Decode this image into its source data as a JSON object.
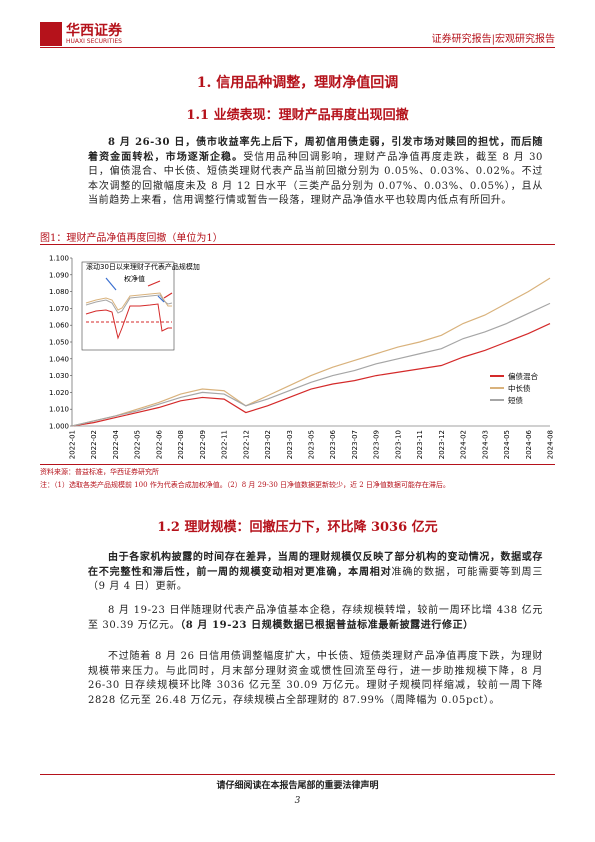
{
  "header": {
    "logo": "华西证券",
    "logo_en": "HUAXI SECURITIES",
    "report_type": "证券研究报告|宏观研究报告"
  },
  "section1": {
    "title": "1. 信用品种调整，理财净值回调",
    "subtitle": "1.1 业绩表现：理财产品再度出现回撤",
    "paragraphs": [
      [
        {
          "text": "8 月 26-30 日，债市收益率先上后下，周初信用债走弱，引发市场对赎回的担忧，而后随着资金面转松，市场逐渐企稳。",
          "bold": true
        },
        {
          "text": "受信用品种回调影响，理财产品净值再度走跌，截至 8 月 30 日，偏债混合、中长债、短债类理财代表产品当前回撤分别为 0.05%、0.03%、0.02%。不过本次调整的回撤幅度未及 8 月 12 日水平（三类产品分别为 0.07%、0.03%、0.05%），且从当前趋势上来看，信用调整行情或暂告一段落，理财产品净值水平也较周内低点有所回升。",
          "bold": false
        }
      ]
    ]
  },
  "figure": {
    "title": "图1：理财产品净值再度回撤（单位为1）",
    "source": "资料来源：普益标准，华西证券研究所",
    "note": "注：（1）选取各类产品规模前 100 作为代表合成加权净值。（2）8 月 29-30 日净值数据更新较少，近 2 日净值数据可能存在滞后。"
  },
  "chart_data": {
    "type": "line",
    "categories": [
      "2022-01",
      "2022-02",
      "2022-04",
      "2022-05",
      "2022-06",
      "2022-08",
      "2022-09",
      "2022-11",
      "2022-12",
      "2023-02",
      "2023-03",
      "2023-05",
      "2023-06",
      "2023-07",
      "2023-09",
      "2023-10",
      "2023-11",
      "2023-12",
      "2024-02",
      "2024-03",
      "2024-05",
      "2024-06",
      "2024-08"
    ],
    "series": [
      {
        "name": "偏债混合",
        "color": "#d42a2a",
        "values": [
          1.0,
          1.002,
          1.005,
          1.008,
          1.011,
          1.015,
          1.017,
          1.016,
          1.008,
          1.012,
          1.017,
          1.022,
          1.025,
          1.027,
          1.03,
          1.032,
          1.034,
          1.036,
          1.041,
          1.045,
          1.05,
          1.055,
          1.061
        ]
      },
      {
        "name": "中长债",
        "color": "#d9b27c",
        "values": [
          1.0,
          1.003,
          1.006,
          1.01,
          1.014,
          1.019,
          1.022,
          1.021,
          1.012,
          1.018,
          1.024,
          1.03,
          1.035,
          1.039,
          1.043,
          1.047,
          1.05,
          1.054,
          1.061,
          1.066,
          1.073,
          1.08,
          1.088
        ]
      },
      {
        "name": "短债",
        "color": "#a6a6a6",
        "values": [
          1.0,
          1.003,
          1.006,
          1.009,
          1.013,
          1.017,
          1.02,
          1.019,
          1.012,
          1.016,
          1.021,
          1.026,
          1.03,
          1.033,
          1.037,
          1.04,
          1.043,
          1.046,
          1.052,
          1.056,
          1.061,
          1.067,
          1.073
        ]
      }
    ],
    "ylim": [
      1.0,
      1.1
    ],
    "yticks": [
      {
        "value": 1.0,
        "label": "1.000"
      },
      {
        "value": 1.01,
        "label": "1.010"
      },
      {
        "value": 1.02,
        "label": "1.020"
      },
      {
        "value": 1.03,
        "label": "1.030"
      },
      {
        "value": 1.04,
        "label": "1.040"
      },
      {
        "value": 1.05,
        "label": "1.050"
      },
      {
        "value": 1.06,
        "label": "1.060"
      },
      {
        "value": 1.07,
        "label": "1.070"
      },
      {
        "value": 1.08,
        "label": "1.080"
      },
      {
        "value": 1.09,
        "label": "1.090"
      },
      {
        "value": 1.1,
        "label": "1.100"
      }
    ],
    "annotations": [
      "滚动30日以来理财子代表产品规模加",
      "权净值"
    ],
    "legend": "lower right"
  },
  "section2": {
    "title": "1.2 理财规模：回撤压力下，环比降 3036 亿元",
    "paragraphs": [
      [
        {
          "text": "由于各家机构披露的时间存在差异，当周的理财规模仅反映了部分机构的变动情况，数据或存在不完整性和滞后性，前一周的规模变动相对更准确，本周相对",
          "bold": true
        },
        {
          "text": "准确的数据，可能需要等到周三（9 月 4 日）更新。",
          "bold": false
        }
      ],
      [
        {
          "text": "8 月 19-23 日伴随理财代表产品净值基本企稳，存续规模转增，较前一周环比增 438 亿元至 30.39 万亿元。",
          "bold": false
        },
        {
          "text": "（8 月 19-23 日规模数据已根据普益标准最新披露进行修正）",
          "bold": true
        }
      ],
      [
        {
          "text": "不过随着 8 月 26 日信用债调整幅度扩大，中长债、短债类理财产品净值再度下跌，为理财规模带来压力。与此同时，月末部分理财资金或惯性回流至母行，进一步助推规模下降，8 月 26-30 日存续规模环比降 3036 亿元至 30.09 万亿元。理财子规模同样缩减，较前一周下降 2828 亿元至 26.48 万亿元，存续规模占全部理财的 87.99%（周降幅为 0.05pct）。",
          "bold": false
        }
      ]
    ]
  },
  "footer": {
    "disclaimer": "请仔细阅读在本报告尾部的重要法律声明",
    "page": 3
  }
}
